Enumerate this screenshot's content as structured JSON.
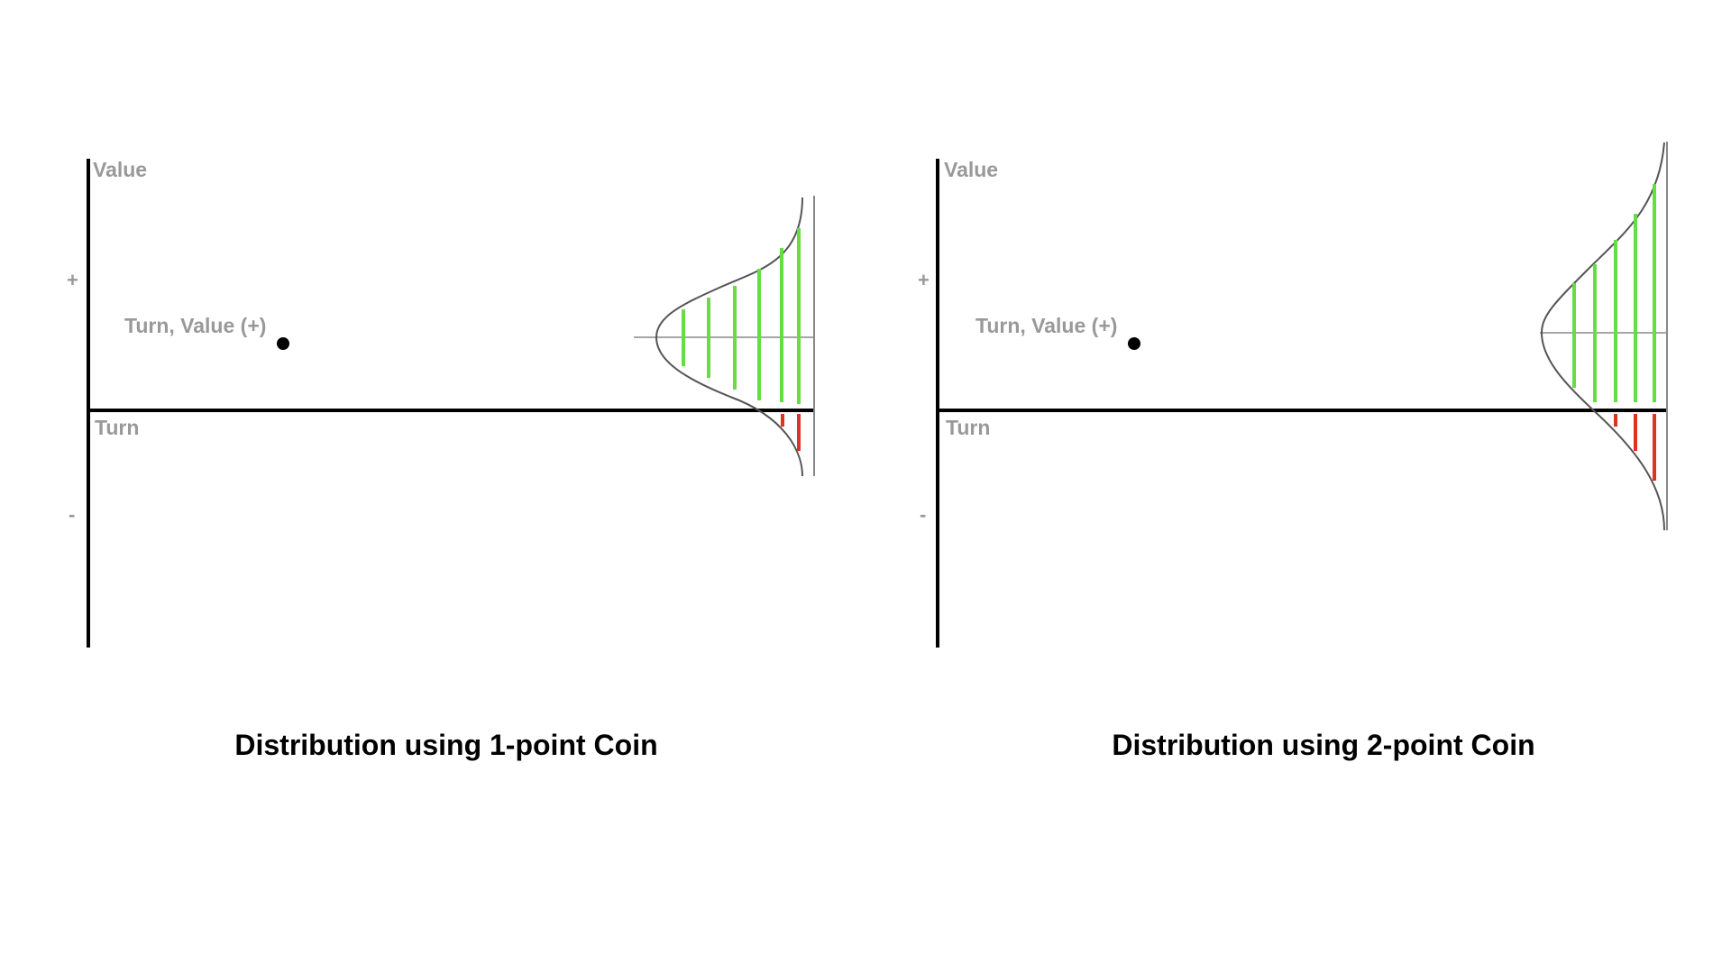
{
  "panels": [
    {
      "axis_y_label": "Value",
      "axis_x_label": "Turn",
      "plus_label": "+",
      "minus_label": "-",
      "point_label": "Turn, Value (+)",
      "caption": "Distribution using 1-point Coin"
    },
    {
      "axis_y_label": "Value",
      "axis_x_label": "Turn",
      "plus_label": "+",
      "minus_label": "-",
      "point_label": "Turn, Value (+)",
      "caption": "Distribution using 2-point Coin"
    }
  ],
  "colors": {
    "axis": "#000000",
    "label": "#999999",
    "curve": "#555555",
    "positive_line": "#66dd44",
    "negative_line": "#dd3322"
  }
}
